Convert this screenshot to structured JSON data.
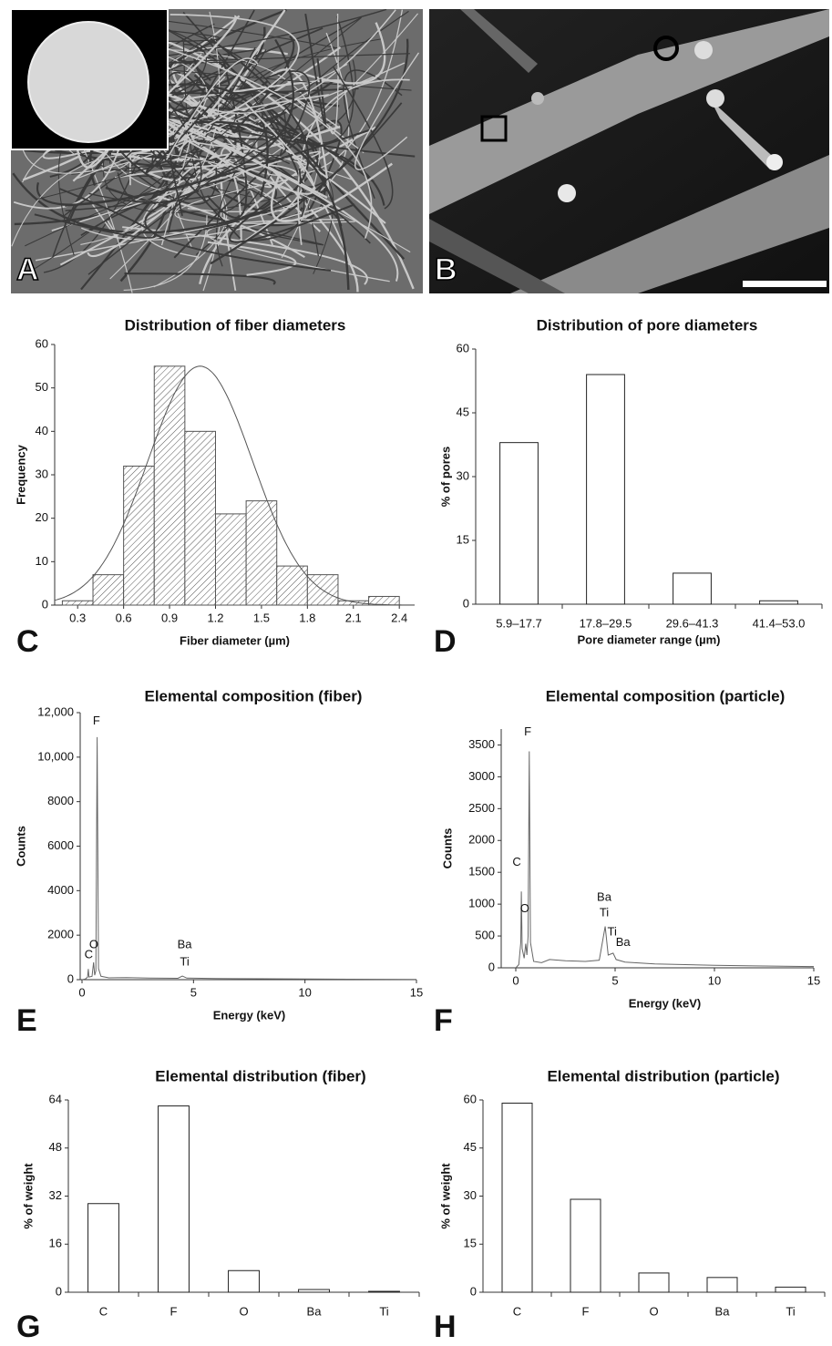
{
  "image_panels": [
    {
      "label": "A"
    },
    {
      "label": "B"
    }
  ],
  "chart_data": [
    {
      "type": "histogram",
      "panel": "C",
      "title": "Distribution of fiber diameters",
      "x_label": "Fiber diameter (µm)",
      "y_label": "Frequency",
      "bins": [
        0.2,
        0.4,
        0.6,
        0.8,
        1.0,
        1.2,
        1.4,
        1.6,
        1.8,
        2.0,
        2.2,
        2.4
      ],
      "values": [
        1,
        7,
        32,
        55,
        40,
        21,
        24,
        9,
        7,
        1,
        2
      ],
      "xlim": [
        0.15,
        2.5
      ],
      "xticks": [
        0.3,
        0.6,
        0.9,
        1.2,
        1.5,
        1.8,
        2.1,
        2.4
      ],
      "ylim": [
        0,
        60
      ],
      "yticks": [
        0,
        10,
        20,
        30,
        40,
        50,
        60
      ],
      "fit": {
        "peak": 55,
        "mean": 1.1,
        "sd": 0.34
      },
      "color": "#555555"
    },
    {
      "type": "bar",
      "panel": "D",
      "title": "Distribution of pore diameters",
      "x_label": "Pore diameter range (µm)",
      "y_label": "% of pores",
      "categories": [
        "5.9–17.7",
        "17.8–29.5",
        "29.6–41.3",
        "41.4–53.0"
      ],
      "values": [
        38,
        54,
        7.3,
        0.8
      ],
      "ylim": [
        0,
        60
      ],
      "yticks": [
        0,
        15,
        30,
        45,
        60
      ],
      "color": "#ffffff"
    },
    {
      "type": "line",
      "panel": "E",
      "title": "Elemental composition (fiber)",
      "x_label": "Energy (keV)",
      "y_label": "Counts",
      "x": [
        0,
        0.15,
        0.25,
        0.28,
        0.31,
        0.45,
        0.52,
        0.57,
        0.62,
        0.68,
        0.74,
        0.85,
        1.2,
        2,
        3,
        4.3,
        4.5,
        4.7,
        6,
        8,
        10,
        12,
        15
      ],
      "values": [
        0,
        30,
        120,
        480,
        120,
        150,
        780,
        200,
        400,
        10900,
        500,
        150,
        80,
        90,
        70,
        60,
        160,
        70,
        50,
        40,
        30,
        20,
        10
      ],
      "xlim": [
        0,
        15
      ],
      "xticks": [
        0,
        5,
        10,
        15
      ],
      "ylim": [
        0,
        12000
      ],
      "yticks": [
        0,
        2000,
        4000,
        6000,
        8000,
        {
          "value": 10000,
          "label": "10,000"
        },
        {
          "value": 12000,
          "label": "12,000"
        }
      ],
      "annotations": [
        {
          "text": "C",
          "x": 0.3,
          "y": 1100
        },
        {
          "text": "O",
          "x": 0.53,
          "y": 1550
        },
        {
          "text": "F",
          "x": 0.65,
          "y": 11600
        },
        {
          "text": "Ba",
          "x": 4.6,
          "y": 1550
        },
        {
          "text": "Ti",
          "x": 4.6,
          "y": 780
        }
      ],
      "color": "#666666"
    },
    {
      "type": "line",
      "panel": "F",
      "title": "Elemental composition (particle)",
      "x_label": "Energy (keV)",
      "y_label": "Counts",
      "x": [
        0,
        0.15,
        0.25,
        0.28,
        0.32,
        0.42,
        0.5,
        0.56,
        0.62,
        0.68,
        0.74,
        0.9,
        1.3,
        1.7,
        2.5,
        3.5,
        4.2,
        4.5,
        4.65,
        4.9,
        5.05,
        5.5,
        7,
        10,
        12,
        15
      ],
      "values": [
        0,
        50,
        400,
        1200,
        300,
        150,
        380,
        200,
        500,
        3400,
        400,
        100,
        80,
        130,
        110,
        100,
        120,
        650,
        200,
        230,
        130,
        90,
        60,
        40,
        30,
        20
      ],
      "xlim": [
        0,
        15
      ],
      "xticks": [
        0,
        5,
        10,
        15
      ],
      "ylim": [
        0,
        3750
      ],
      "yticks": [
        0,
        500,
        1000,
        1500,
        2000,
        2500,
        3000,
        3500
      ],
      "annotations": [
        {
          "text": "F",
          "x": 0.6,
          "y": 3700
        },
        {
          "text": "C",
          "x": 0.05,
          "y": 1650
        },
        {
          "text": "O",
          "x": 0.45,
          "y": 920
        },
        {
          "text": "Ba",
          "x": 4.45,
          "y": 1100
        },
        {
          "text": "Ti",
          "x": 4.45,
          "y": 860
        },
        {
          "text": "Ti",
          "x": 4.85,
          "y": 560
        },
        {
          "text": "Ba",
          "x": 5.4,
          "y": 390
        }
      ],
      "color": "#666666"
    },
    {
      "type": "bar",
      "panel": "G",
      "title": "Elemental distribution (fiber)",
      "y_label": "% of weight",
      "categories": [
        "C",
        "F",
        "O",
        "Ba",
        "Ti"
      ],
      "values": [
        29.5,
        62,
        7.2,
        0.9,
        0.3
      ],
      "ylim": [
        0,
        64
      ],
      "yticks": [
        0,
        16,
        32,
        48,
        64
      ],
      "color": "#ffffff"
    },
    {
      "type": "bar",
      "panel": "H",
      "title": "Elemental distribution (particle)",
      "y_label": "% of weight",
      "categories": [
        "C",
        "F",
        "O",
        "Ba",
        "Ti"
      ],
      "values": [
        59,
        29,
        6,
        4.6,
        1.6
      ],
      "ylim": [
        0,
        60
      ],
      "yticks": [
        0,
        15,
        30,
        45,
        60
      ],
      "color": "#ffffff"
    }
  ]
}
